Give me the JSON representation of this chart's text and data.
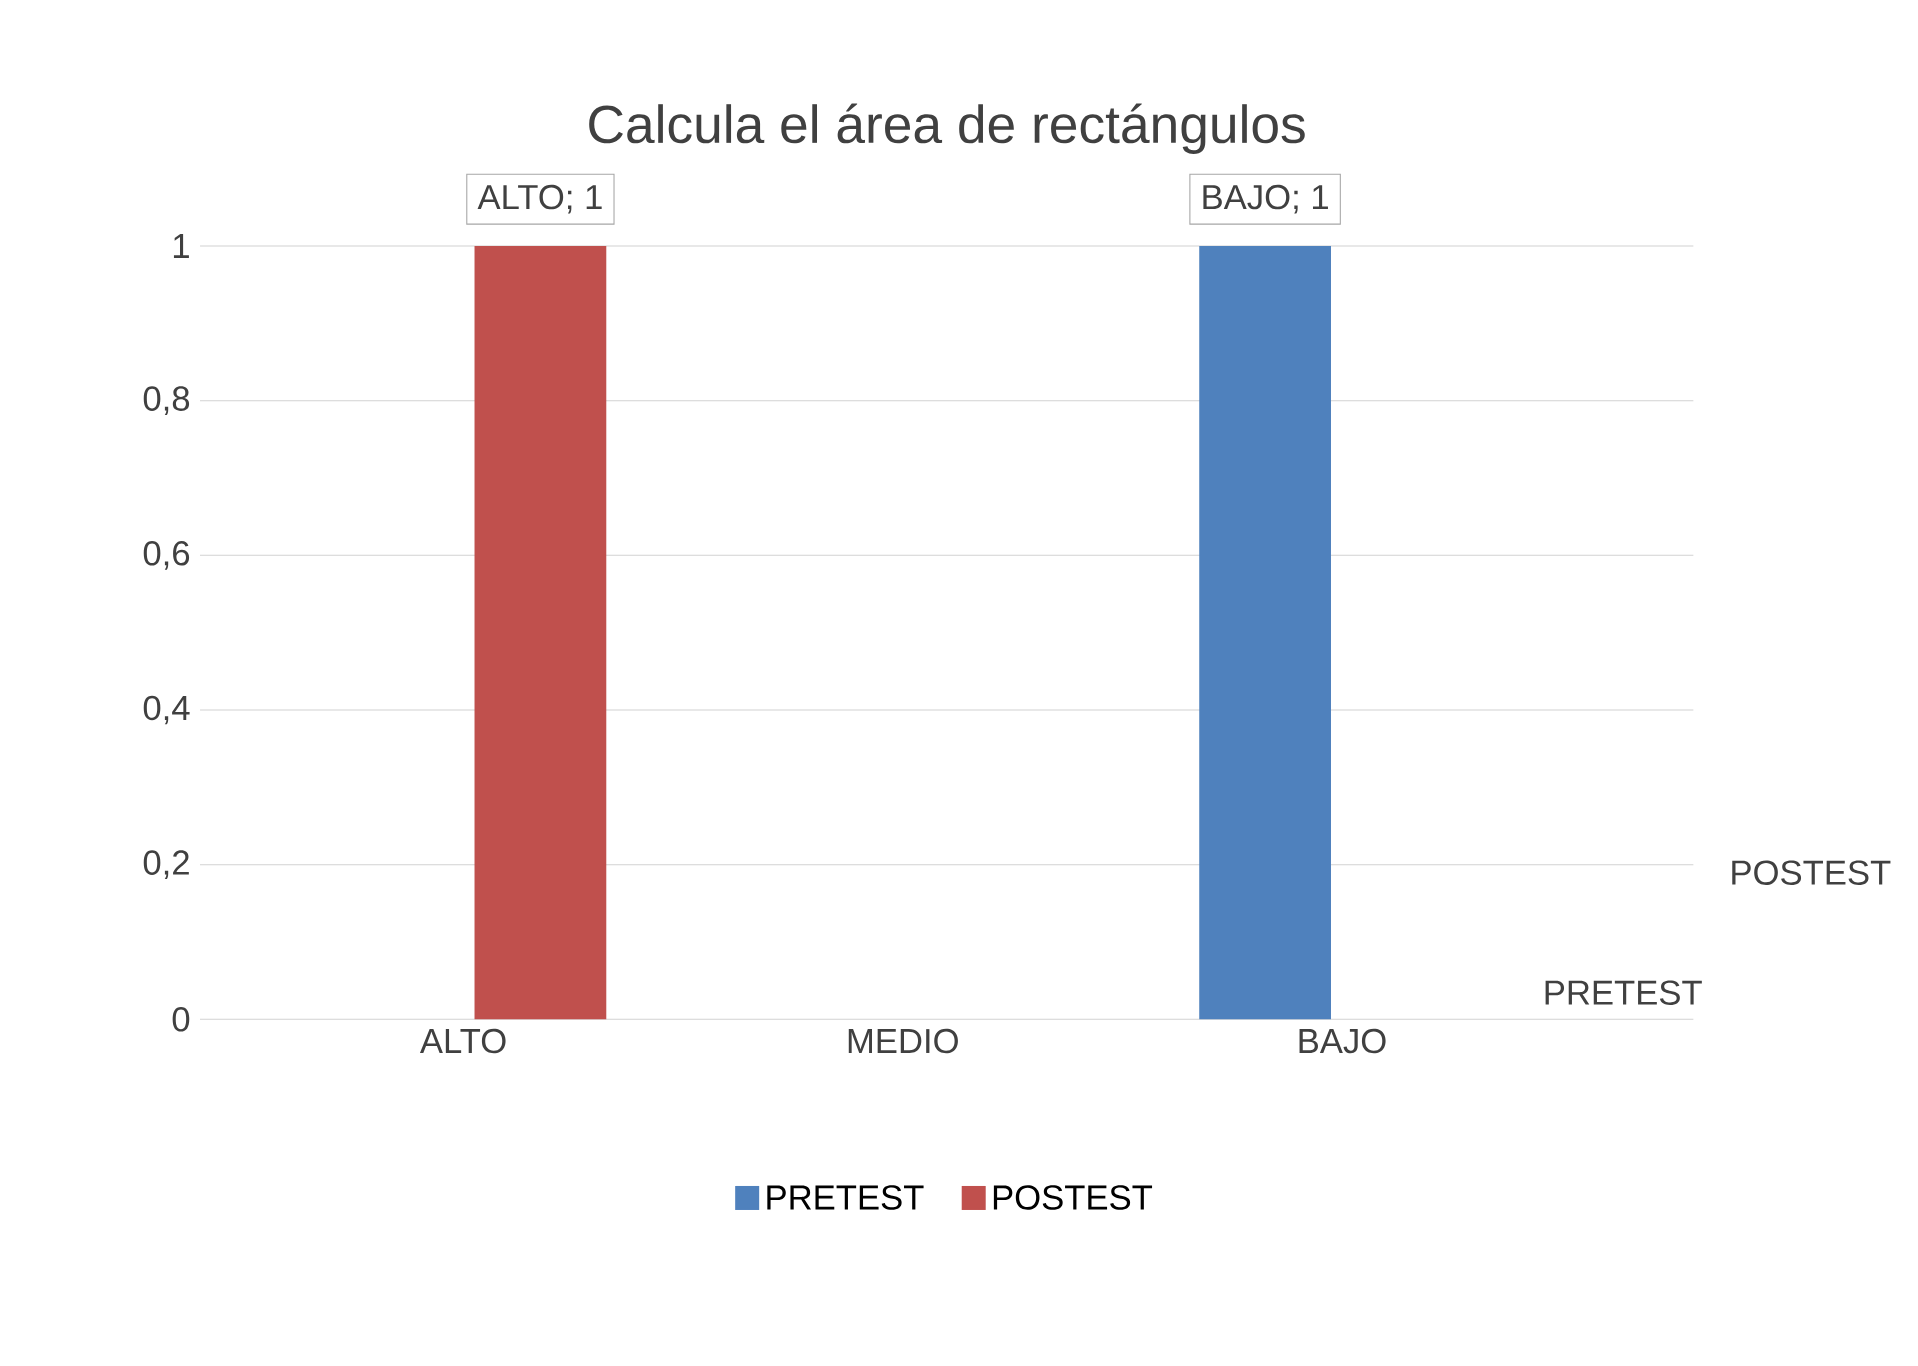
{
  "chart_data": {
    "type": "bar",
    "title": "Calcula el área de rectángulos",
    "categories": [
      "ALTO",
      "MEDIO",
      "BAJO"
    ],
    "series": [
      {
        "name": "PRETEST",
        "color": "#4f81bd",
        "values": [
          null,
          null,
          1
        ],
        "value_labels": [
          null,
          null,
          "BAJO; 1"
        ]
      },
      {
        "name": "POSTEST",
        "color": "#c0504d",
        "values": [
          1,
          null,
          null
        ],
        "value_labels": [
          "ALTO; 1",
          null,
          null
        ]
      }
    ],
    "ylim": [
      0,
      1
    ],
    "yticks": [
      0,
      {
        "value": 0.2,
        "label": "0,2"
      },
      {
        "value": 0.4,
        "label": "0,4"
      },
      {
        "value": 0.6,
        "label": "0,6"
      },
      {
        "value": 0.8,
        "label": "0,8"
      },
      1
    ],
    "grid": "y",
    "legend": "bottom"
  }
}
